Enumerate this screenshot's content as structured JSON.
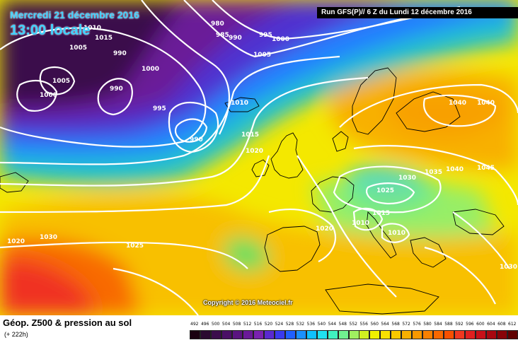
{
  "header": {
    "date": "Mercredi 21 décembre 2016",
    "time": "13:00 locale",
    "run": "Run GFS(P)// 6 Z du Lundi 12 décembre 2016"
  },
  "map": {
    "copyright": "Copyright © 2016 Meteociel.fr",
    "pressure_labels": [
      "980",
      "985",
      "990",
      "995",
      "1000",
      "1005",
      "1010",
      "1015",
      "1020",
      "1025",
      "1030",
      "1035",
      "1040",
      "1045"
    ]
  },
  "footer": {
    "title": "Géop. Z500 & pression au sol",
    "forecast_hour": "(+ 222h)"
  },
  "legend": {
    "scale_labels": [
      "492",
      "496",
      "500",
      "504",
      "508",
      "512",
      "516",
      "520",
      "524",
      "528",
      "532",
      "536",
      "540",
      "544",
      "548",
      "552",
      "556",
      "560",
      "564",
      "568",
      "572",
      "576",
      "580",
      "584",
      "588",
      "592",
      "596",
      "600",
      "604",
      "608",
      "612"
    ],
    "scale_colors": [
      "#1a0010",
      "#2a0a30",
      "#3b0d4c",
      "#4a1066",
      "#5a1480",
      "#6a1a98",
      "#7a22b0",
      "#5a2ad0",
      "#3a3aee",
      "#2060ff",
      "#1a90ff",
      "#10c0ff",
      "#20e0f0",
      "#40f0c0",
      "#70f090",
      "#a0f060",
      "#d0f020",
      "#f0f000",
      "#f8e000",
      "#f8c800",
      "#f8b000",
      "#f89800",
      "#f88000",
      "#f86800",
      "#f85000",
      "#f03820",
      "#e02020",
      "#c81018",
      "#a80810",
      "#880408",
      "#600000"
    ]
  }
}
